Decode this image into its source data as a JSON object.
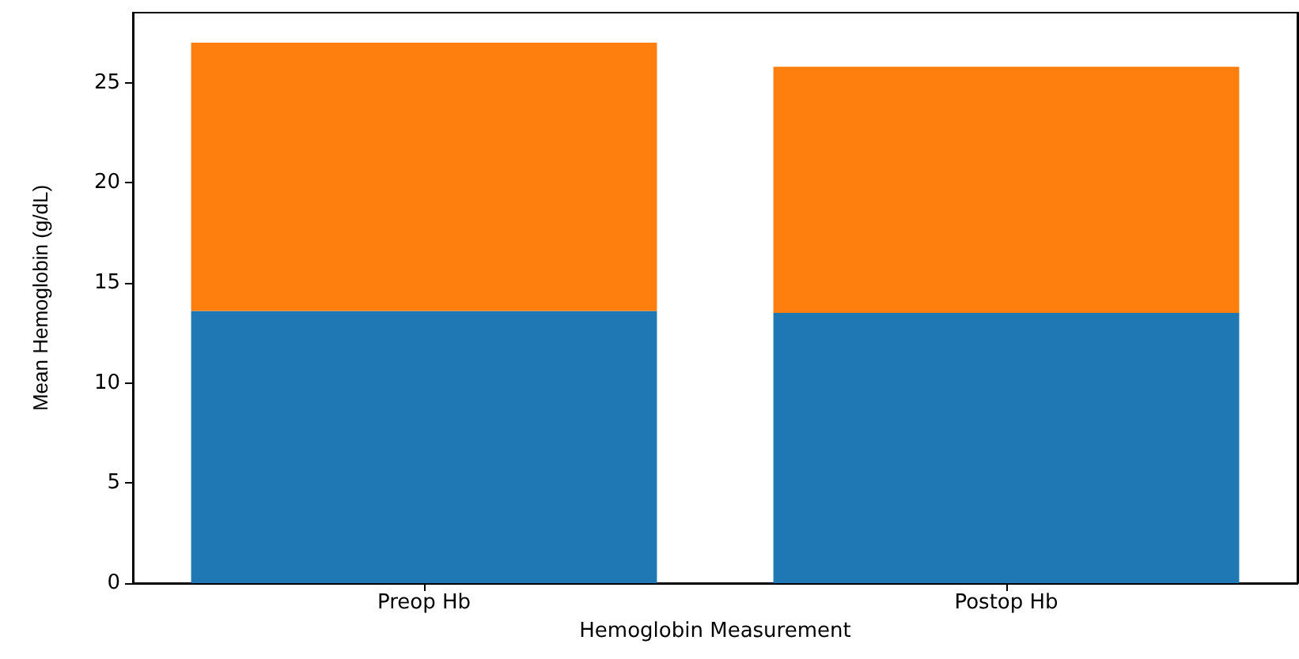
{
  "chart_data": {
    "type": "bar",
    "stacked": true,
    "xlabel": "Hemoglobin Measurement",
    "ylabel": "Mean Hemoglobin (g/dL)",
    "categories": [
      "Preop Hb",
      "Postop Hb"
    ],
    "series": [
      {
        "color": "#1f77b4",
        "values": [
          13.6,
          13.5
        ]
      },
      {
        "color": "#ff7f0e",
        "values": [
          13.4,
          12.3
        ]
      }
    ],
    "ylim": [
      0,
      28.5
    ],
    "yticks": [
      0,
      5,
      10,
      15,
      20,
      25
    ],
    "grid": false
  }
}
